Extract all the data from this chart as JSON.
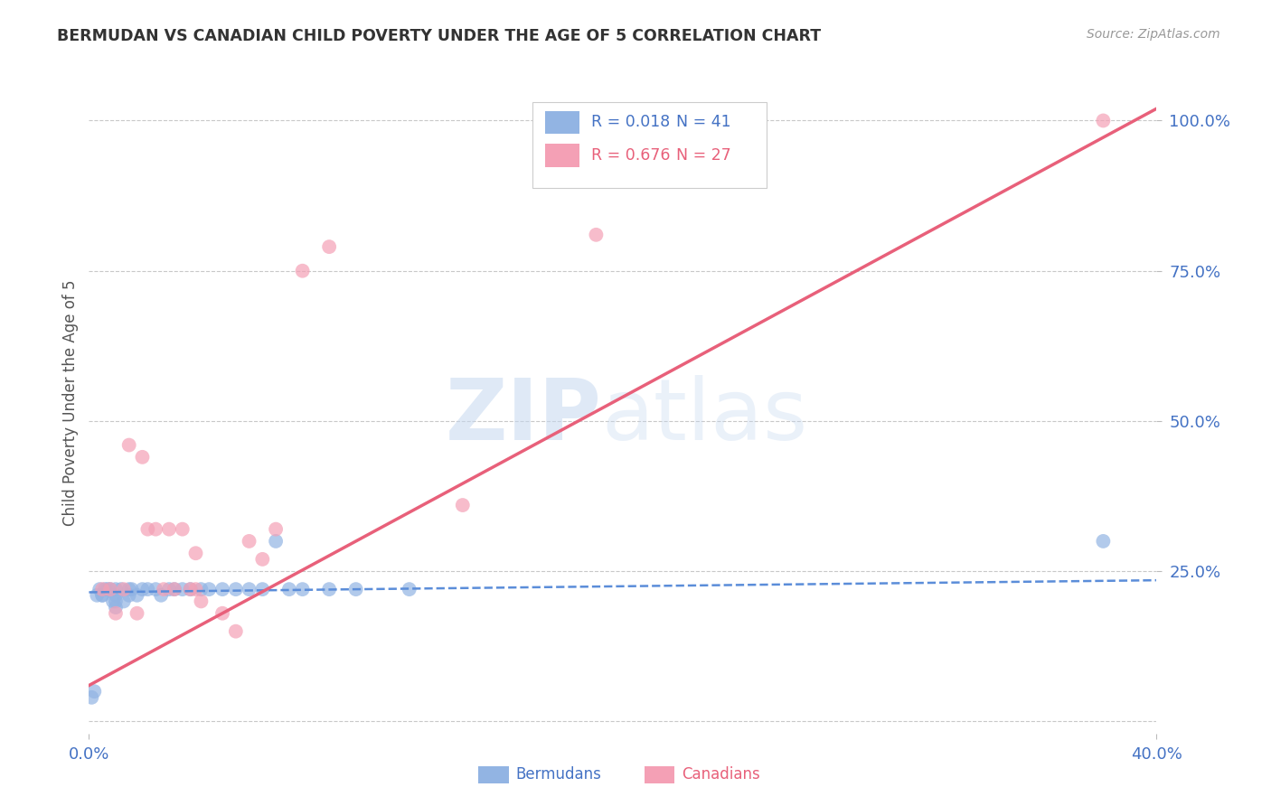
{
  "title": "BERMUDAN VS CANADIAN CHILD POVERTY UNDER THE AGE OF 5 CORRELATION CHART",
  "source": "Source: ZipAtlas.com",
  "ylabel": "Child Poverty Under the Age of 5",
  "xlim": [
    0.0,
    0.4
  ],
  "ylim": [
    -0.02,
    1.08
  ],
  "xticks": [
    0.0,
    0.4
  ],
  "xticklabels": [
    "0.0%",
    "40.0%"
  ],
  "yticks_right": [
    0.25,
    0.5,
    0.75,
    1.0
  ],
  "yticklabels_right": [
    "25.0%",
    "50.0%",
    "75.0%",
    "100.0%"
  ],
  "bermuda_color": "#92b4e3",
  "canada_color": "#f4a0b5",
  "bermuda_line_color": "#5b8dd9",
  "canada_line_color": "#e8607a",
  "grid_color": "#c8c8c8",
  "background_color": "#ffffff",
  "bermudans_x": [
    0.001,
    0.002,
    0.003,
    0.004,
    0.005,
    0.005,
    0.006,
    0.007,
    0.008,
    0.009,
    0.01,
    0.01,
    0.01,
    0.01,
    0.012,
    0.013,
    0.015,
    0.015,
    0.016,
    0.018,
    0.02,
    0.022,
    0.025,
    0.027,
    0.03,
    0.032,
    0.035,
    0.038,
    0.042,
    0.045,
    0.05,
    0.055,
    0.06,
    0.065,
    0.07,
    0.075,
    0.08,
    0.09,
    0.1,
    0.12,
    0.38
  ],
  "bermudans_y": [
    0.04,
    0.05,
    0.21,
    0.22,
    0.21,
    0.21,
    0.22,
    0.22,
    0.22,
    0.2,
    0.22,
    0.21,
    0.2,
    0.19,
    0.22,
    0.2,
    0.22,
    0.21,
    0.22,
    0.21,
    0.22,
    0.22,
    0.22,
    0.21,
    0.22,
    0.22,
    0.22,
    0.22,
    0.22,
    0.22,
    0.22,
    0.22,
    0.22,
    0.22,
    0.3,
    0.22,
    0.22,
    0.22,
    0.22,
    0.22,
    0.3
  ],
  "canadians_x": [
    0.005,
    0.008,
    0.01,
    0.013,
    0.015,
    0.018,
    0.02,
    0.022,
    0.025,
    0.028,
    0.03,
    0.032,
    0.035,
    0.038,
    0.04,
    0.04,
    0.042,
    0.05,
    0.055,
    0.06,
    0.065,
    0.07,
    0.08,
    0.09,
    0.14,
    0.19,
    0.38
  ],
  "canadians_y": [
    0.22,
    0.22,
    0.18,
    0.22,
    0.46,
    0.18,
    0.44,
    0.32,
    0.32,
    0.22,
    0.32,
    0.22,
    0.32,
    0.22,
    0.28,
    0.22,
    0.2,
    0.18,
    0.15,
    0.3,
    0.27,
    0.32,
    0.75,
    0.79,
    0.36,
    0.81,
    1.0
  ],
  "bermuda_line_x": [
    0.0,
    0.4
  ],
  "bermuda_line_y": [
    0.215,
    0.235
  ],
  "canada_line_x": [
    0.0,
    0.4
  ],
  "canada_line_y": [
    0.06,
    1.02
  ],
  "legend_items": [
    {
      "color": "#92b4e3",
      "r": "0.018",
      "n": "41",
      "r_color": "#4472c4",
      "n_color": "#4472c4"
    },
    {
      "color": "#f4a0b5",
      "r": "0.676",
      "n": "27",
      "r_color": "#e8607a",
      "n_color": "#e8607a"
    }
  ]
}
